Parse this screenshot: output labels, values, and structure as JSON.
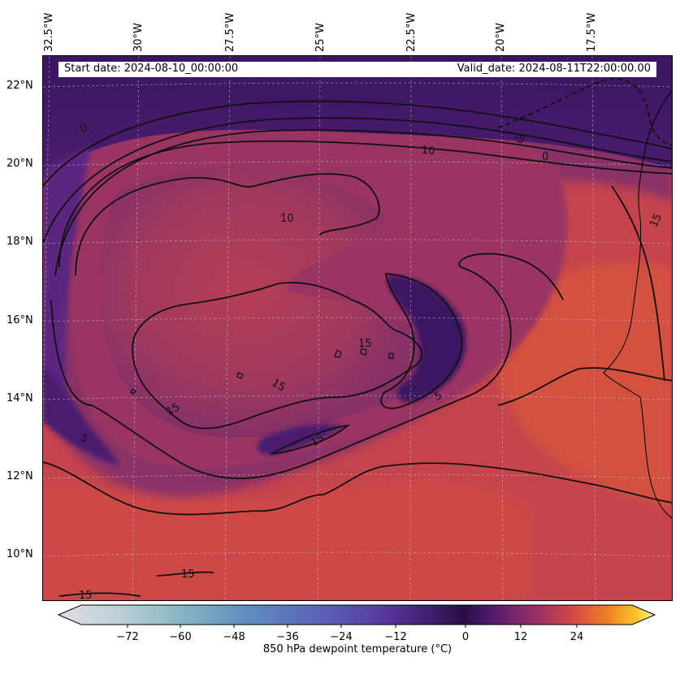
{
  "map": {
    "start_date_text": "Start date: 2024-08-10_00:00:00",
    "valid_date_text": "Valid_date: 2024-08-11T22:00:00.00",
    "longitude_labels": [
      "32.5°W",
      "30°W",
      "27.5°W",
      "25°W",
      "22.5°W",
      "20°W",
      "17.5°W"
    ],
    "latitude_labels": [
      "22°N",
      "20°N",
      "18°N",
      "16°N",
      "14°N",
      "12°N",
      "10°N"
    ],
    "contour_labels": [
      "0",
      "10",
      "-5",
      "0",
      "10",
      "15",
      "15",
      "15",
      "15",
      "5",
      "5",
      "15",
      "15",
      "15"
    ],
    "field_colors": {
      "dark": "#3a1660",
      "purple": "#5b2580",
      "magenta": "#8a3068",
      "red": "#c4444d",
      "orange": "#e56535"
    }
  },
  "colorbar": {
    "label": "850 hPa dewpoint temperature ($^\\circ$C)",
    "label_display": "850 hPa dewpoint temperature (°C)",
    "tick_labels": [
      "−72",
      "−60",
      "−48",
      "−36",
      "−24",
      "−12",
      "0",
      "12",
      "24"
    ],
    "range": [
      -84,
      36
    ],
    "colormap": "inferno-pair",
    "extend": "both"
  }
}
